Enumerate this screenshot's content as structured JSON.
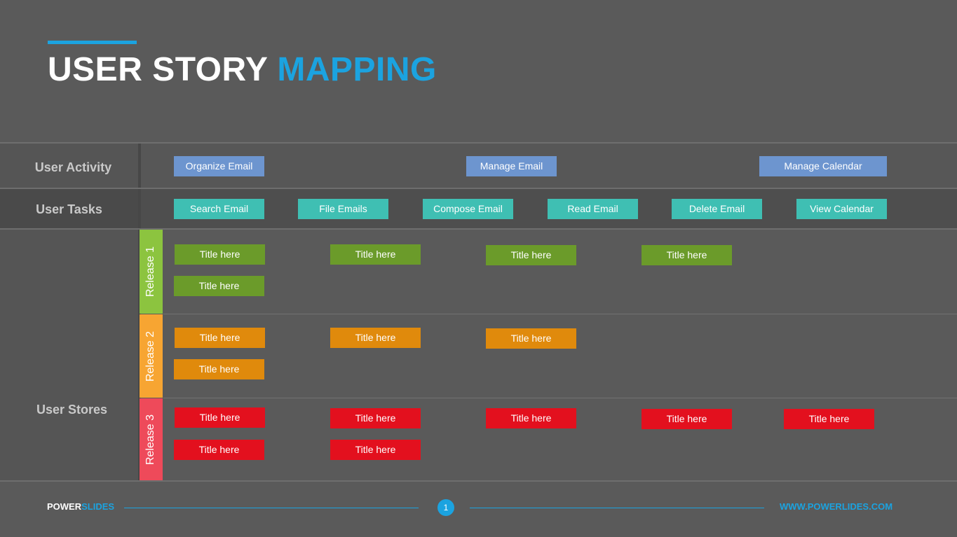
{
  "header": {
    "title_main": "USER STORY",
    "title_highlight": "MAPPING"
  },
  "rows": {
    "activity_label": "User Activity",
    "tasks_label": "User Tasks",
    "stories_label": "User Stores"
  },
  "activities": [
    "Organize Email",
    "Manage Email",
    "Manage Calendar"
  ],
  "tasks": [
    "Search Email",
    "File Emails",
    "Compose Email",
    "Read Email",
    "Delete Email",
    "View Calendar"
  ],
  "releases": [
    {
      "label": "Release 1",
      "color": "#8cc43f",
      "card_color": "#6b9b2a",
      "cards": [
        "Title here",
        "Title here",
        "Title here",
        "Title here",
        "Title here"
      ]
    },
    {
      "label": "Release 2",
      "color": "#f7a532",
      "card_color": "#e08a0c",
      "cards": [
        "Title here",
        "Title here",
        "Title here",
        "Title here"
      ]
    },
    {
      "label": "Release 3",
      "color": "#ee4a5a",
      "card_color": "#e3101e",
      "cards": [
        "Title here",
        "Title here",
        "Title here",
        "Title here",
        "Title here",
        "Title here",
        "Title here"
      ]
    }
  ],
  "footer": {
    "brand_a": "POWER",
    "brand_b": "SLIDES",
    "page_number": "1",
    "url": "WWW.POWERLIDES.COM"
  },
  "colors": {
    "accent": "#1ba3e0",
    "activity": "#6d95cf",
    "task": "#3fbfb3"
  }
}
